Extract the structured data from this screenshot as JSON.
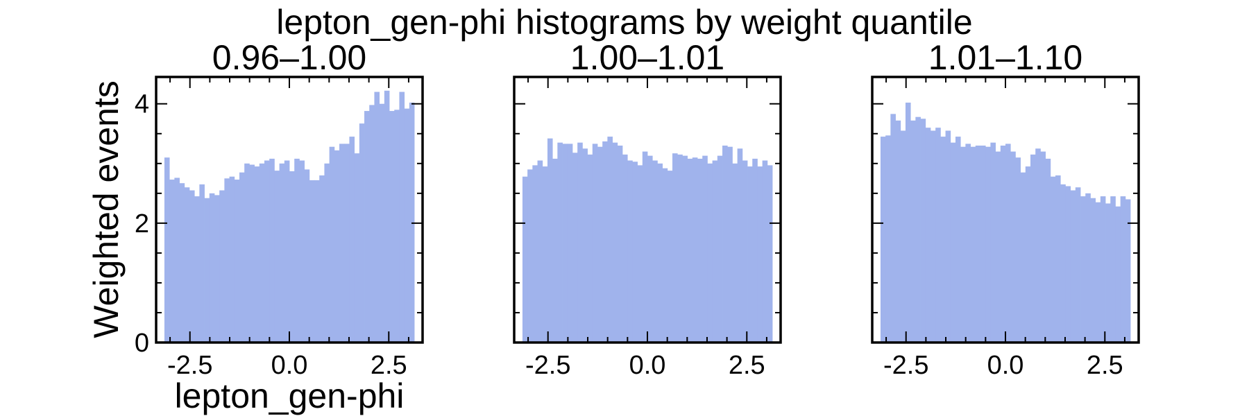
{
  "figure": {
    "suptitle": "lepton_gen-phi histograms by weight quantile",
    "bar_color": "#a0b3ec"
  },
  "chart_data": [
    {
      "type": "bar",
      "title": "0.96–1.00",
      "xlabel": "lepton_gen-phi",
      "ylabel": "Weighted events",
      "xlim": [
        -3.35,
        3.35
      ],
      "ylim": [
        0,
        4.45
      ],
      "xticks": [
        "-2.5",
        "0.0",
        "2.5"
      ],
      "yticks": [
        "0",
        "2",
        "4"
      ],
      "bin_edges_range": [
        -3.1416,
        3.1416
      ],
      "values": [
        3.1,
        2.73,
        2.76,
        2.67,
        2.6,
        2.55,
        2.45,
        2.65,
        2.42,
        2.5,
        2.47,
        2.55,
        2.75,
        2.78,
        2.73,
        2.85,
        3.0,
        2.98,
        2.95,
        3.0,
        3.05,
        3.08,
        2.88,
        3.0,
        3.05,
        2.87,
        3.08,
        3.05,
        2.9,
        2.72,
        2.72,
        2.8,
        3.0,
        3.28,
        3.22,
        3.33,
        3.33,
        3.45,
        3.17,
        3.67,
        3.88,
        3.98,
        4.2,
        4.0,
        4.22,
        3.88,
        3.9,
        4.2,
        3.92,
        4.02
      ]
    },
    {
      "type": "bar",
      "title": "1.00–1.01",
      "xlabel": "",
      "ylabel": "",
      "xlim": [
        -3.35,
        3.35
      ],
      "ylim": [
        0,
        4.45
      ],
      "xticks": [
        "-2.5",
        "0.0",
        "2.5"
      ],
      "yticks": [],
      "bin_edges_range": [
        -3.1416,
        3.1416
      ],
      "values": [
        2.78,
        2.9,
        2.97,
        3.05,
        2.95,
        3.42,
        3.08,
        3.35,
        3.33,
        3.33,
        3.18,
        3.35,
        3.25,
        3.15,
        3.33,
        3.28,
        3.37,
        3.45,
        3.35,
        3.3,
        3.15,
        3.05,
        3.03,
        2.97,
        3.2,
        3.13,
        3.05,
        3.0,
        2.92,
        2.88,
        3.17,
        3.15,
        3.13,
        3.08,
        3.1,
        3.08,
        3.13,
        3.0,
        3.05,
        3.13,
        3.3,
        3.28,
        3.0,
        3.25,
        3.05,
        2.95,
        3.08,
        2.95,
        3.05,
        2.97
      ]
    },
    {
      "type": "bar",
      "title": "1.01–1.10",
      "xlabel": "",
      "ylabel": "",
      "xlim": [
        -3.35,
        3.35
      ],
      "ylim": [
        0,
        4.45
      ],
      "xticks": [
        "-2.5",
        "0.0",
        "2.5"
      ],
      "yticks": [],
      "bin_edges_range": [
        -3.1416,
        3.1416
      ],
      "values": [
        3.45,
        3.47,
        3.83,
        3.72,
        3.55,
        4.02,
        3.72,
        3.78,
        3.75,
        3.6,
        3.55,
        3.6,
        3.45,
        3.55,
        3.35,
        3.45,
        3.28,
        3.33,
        3.28,
        3.3,
        3.3,
        3.28,
        3.35,
        3.2,
        3.3,
        3.33,
        3.2,
        3.1,
        2.85,
        2.95,
        3.15,
        3.25,
        3.2,
        3.08,
        2.78,
        2.8,
        2.65,
        2.62,
        2.55,
        2.6,
        2.45,
        2.5,
        2.42,
        2.35,
        2.45,
        2.33,
        2.45,
        2.28,
        2.45,
        2.4
      ]
    }
  ]
}
